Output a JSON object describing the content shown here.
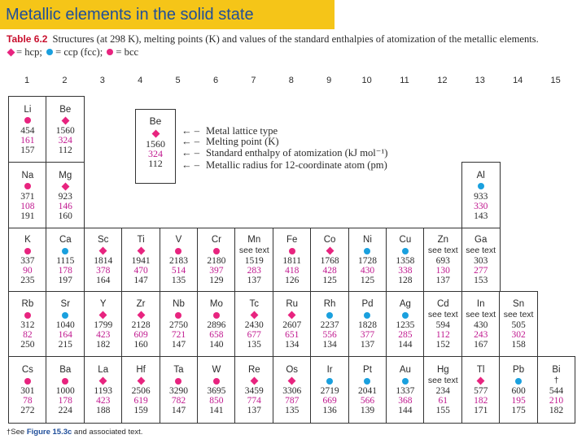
{
  "slide": {
    "title": "Metallic elements in the solid state"
  },
  "caption": {
    "table_label": "Table 6.2",
    "text": "Structures (at 298 K), melting points (K) and values of the standard enthalpies of atomization of the metallic elements."
  },
  "legend": {
    "items": [
      {
        "type": "hcp",
        "label": "= hcp;"
      },
      {
        "type": "ccp",
        "label": "= ccp (fcc);"
      },
      {
        "type": "bcc",
        "label": "= bcc"
      }
    ]
  },
  "colors": {
    "title_bg": "#f5c518",
    "title_text": "#1f4e9a",
    "hcp": "#e8247f",
    "ccp": "#1aa0de",
    "bcc": "#e8247f",
    "enthalpy": "#c0188f"
  },
  "group_numbers": [
    "1",
    "2",
    "3",
    "4",
    "5",
    "6",
    "7",
    "8",
    "9",
    "10",
    "11",
    "12",
    "13",
    "14",
    "15"
  ],
  "key": {
    "symbol": "Be",
    "structure": "hcp",
    "melting_point": "1560",
    "enthalpy": "324",
    "radius": "112",
    "lines": [
      "Metal lattice type",
      "Melting point (K)",
      "Standard enthalpy of atomization (kJ mol⁻¹)",
      "Metallic radius for 12-coordinate atom (pm)"
    ]
  },
  "elements": [
    {
      "s": "Li",
      "st": "bcc",
      "mp": "454",
      "h": "161",
      "r": "157",
      "row": 0,
      "col": 0
    },
    {
      "s": "Be",
      "st": "hcp",
      "mp": "1560",
      "h": "324",
      "r": "112",
      "row": 0,
      "col": 1
    },
    {
      "s": "Na",
      "st": "bcc",
      "mp": "371",
      "h": "108",
      "r": "191",
      "row": 1,
      "col": 0
    },
    {
      "s": "Mg",
      "st": "hcp",
      "mp": "923",
      "h": "146",
      "r": "160",
      "row": 1,
      "col": 1
    },
    {
      "s": "Al",
      "st": "ccp",
      "mp": "933",
      "h": "330",
      "r": "143",
      "row": 1,
      "col": 12
    },
    {
      "s": "K",
      "st": "bcc",
      "mp": "337",
      "h": "90",
      "r": "235",
      "row": 2,
      "col": 0
    },
    {
      "s": "Ca",
      "st": "ccp",
      "mp": "1115",
      "h": "178",
      "r": "197",
      "row": 2,
      "col": 1
    },
    {
      "s": "Sc",
      "st": "hcp",
      "mp": "1814",
      "h": "378",
      "r": "164",
      "row": 2,
      "col": 2
    },
    {
      "s": "Ti",
      "st": "hcp",
      "mp": "1941",
      "h": "470",
      "r": "147",
      "row": 2,
      "col": 3
    },
    {
      "s": "V",
      "st": "bcc",
      "mp": "2183",
      "h": "514",
      "r": "135",
      "row": 2,
      "col": 4
    },
    {
      "s": "Cr",
      "st": "bcc",
      "mp": "2180",
      "h": "397",
      "r": "129",
      "row": 2,
      "col": 5
    },
    {
      "s": "Mn",
      "st": "text",
      "note": "see text",
      "mp": "1519",
      "h": "283",
      "r": "137",
      "row": 2,
      "col": 6
    },
    {
      "s": "Fe",
      "st": "bcc",
      "mp": "1811",
      "h": "418",
      "r": "126",
      "row": 2,
      "col": 7
    },
    {
      "s": "Co",
      "st": "hcp",
      "mp": "1768",
      "h": "428",
      "r": "125",
      "row": 2,
      "col": 8
    },
    {
      "s": "Ni",
      "st": "ccp",
      "mp": "1728",
      "h": "430",
      "r": "125",
      "row": 2,
      "col": 9
    },
    {
      "s": "Cu",
      "st": "ccp",
      "mp": "1358",
      "h": "338",
      "r": "128",
      "row": 2,
      "col": 10
    },
    {
      "s": "Zn",
      "st": "text",
      "note": "see text",
      "mp": "693",
      "h": "130",
      "r": "137",
      "row": 2,
      "col": 11
    },
    {
      "s": "Ga",
      "st": "text",
      "note": "see text",
      "mp": "303",
      "h": "277",
      "r": "153",
      "row": 2,
      "col": 12
    },
    {
      "s": "Rb",
      "st": "bcc",
      "mp": "312",
      "h": "82",
      "r": "250",
      "row": 3,
      "col": 0
    },
    {
      "s": "Sr",
      "st": "ccp",
      "mp": "1040",
      "h": "164",
      "r": "215",
      "row": 3,
      "col": 1
    },
    {
      "s": "Y",
      "st": "hcp",
      "mp": "1799",
      "h": "423",
      "r": "182",
      "row": 3,
      "col": 2
    },
    {
      "s": "Zr",
      "st": "hcp",
      "mp": "2128",
      "h": "609",
      "r": "160",
      "row": 3,
      "col": 3
    },
    {
      "s": "Nb",
      "st": "bcc",
      "mp": "2750",
      "h": "721",
      "r": "147",
      "row": 3,
      "col": 4
    },
    {
      "s": "Mo",
      "st": "bcc",
      "mp": "2896",
      "h": "658",
      "r": "140",
      "row": 3,
      "col": 5
    },
    {
      "s": "Tc",
      "st": "hcp",
      "mp": "2430",
      "h": "677",
      "r": "135",
      "row": 3,
      "col": 6
    },
    {
      "s": "Ru",
      "st": "hcp",
      "mp": "2607",
      "h": "651",
      "r": "134",
      "row": 3,
      "col": 7
    },
    {
      "s": "Rh",
      "st": "ccp",
      "mp": "2237",
      "h": "556",
      "r": "134",
      "row": 3,
      "col": 8
    },
    {
      "s": "Pd",
      "st": "ccp",
      "mp": "1828",
      "h": "377",
      "r": "137",
      "row": 3,
      "col": 9
    },
    {
      "s": "Ag",
      "st": "ccp",
      "mp": "1235",
      "h": "285",
      "r": "144",
      "row": 3,
      "col": 10
    },
    {
      "s": "Cd",
      "st": "text",
      "note": "see text",
      "mp": "594",
      "h": "112",
      "r": "152",
      "row": 3,
      "col": 11
    },
    {
      "s": "In",
      "st": "text",
      "note": "see text",
      "mp": "430",
      "h": "243",
      "r": "167",
      "row": 3,
      "col": 12
    },
    {
      "s": "Sn",
      "st": "text",
      "note": "see text",
      "mp": "505",
      "h": "302",
      "r": "158",
      "row": 3,
      "col": 13
    },
    {
      "s": "Cs",
      "st": "bcc",
      "mp": "301",
      "h": "78",
      "r": "272",
      "row": 4,
      "col": 0
    },
    {
      "s": "Ba",
      "st": "bcc",
      "mp": "1000",
      "h": "178",
      "r": "224",
      "row": 4,
      "col": 1
    },
    {
      "s": "La",
      "st": "hcp",
      "mp": "1193",
      "h": "423",
      "r": "188",
      "row": 4,
      "col": 2
    },
    {
      "s": "Hf",
      "st": "hcp",
      "mp": "2506",
      "h": "619",
      "r": "159",
      "row": 4,
      "col": 3
    },
    {
      "s": "Ta",
      "st": "bcc",
      "mp": "3290",
      "h": "782",
      "r": "147",
      "row": 4,
      "col": 4
    },
    {
      "s": "W",
      "st": "bcc",
      "mp": "3695",
      "h": "850",
      "r": "141",
      "row": 4,
      "col": 5
    },
    {
      "s": "Re",
      "st": "hcp",
      "mp": "3459",
      "h": "774",
      "r": "137",
      "row": 4,
      "col": 6
    },
    {
      "s": "Os",
      "st": "hcp",
      "mp": "3306",
      "h": "787",
      "r": "135",
      "row": 4,
      "col": 7
    },
    {
      "s": "Ir",
      "st": "ccp",
      "mp": "2719",
      "h": "669",
      "r": "136",
      "row": 4,
      "col": 8
    },
    {
      "s": "Pt",
      "st": "ccp",
      "mp": "2041",
      "h": "566",
      "r": "139",
      "row": 4,
      "col": 9
    },
    {
      "s": "Au",
      "st": "ccp",
      "mp": "1337",
      "h": "368",
      "r": "144",
      "row": 4,
      "col": 10
    },
    {
      "s": "Hg",
      "st": "text",
      "note": "see text",
      "mp": "234",
      "h": "61",
      "r": "155",
      "row": 4,
      "col": 11
    },
    {
      "s": "Tl",
      "st": "hcp",
      "mp": "577",
      "h": "182",
      "r": "171",
      "row": 4,
      "col": 12
    },
    {
      "s": "Pb",
      "st": "ccp",
      "mp": "600",
      "h": "195",
      "r": "175",
      "row": 4,
      "col": 13
    },
    {
      "s": "Bi",
      "st": "text",
      "note": "†",
      "mp": "544",
      "h": "210",
      "r": "182",
      "row": 4,
      "col": 14
    }
  ],
  "footnote": {
    "prefix": "†See",
    "link": "Figure 15.3c",
    "suffix": "and associated text."
  }
}
